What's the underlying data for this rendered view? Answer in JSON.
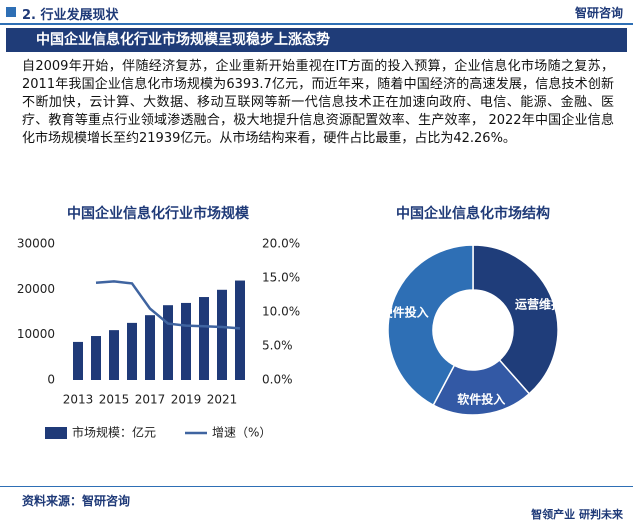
{
  "header": {
    "section": "2. 行业发展现状",
    "logo": "智研咨询"
  },
  "title": "中国企业信息化行业市场规模呈现稳步上涨态势",
  "paragraph": "自2009年开始，伴随经济复苏，企业重新开始重视在IT方面的投入预算，企业信息化市场随之复苏，2011年我国企业信息化市场规模为6393.7亿元，而近年来，随着中国经济的高速发展，信息技术创新不断加快，云计算、大数据、移动互联网等新一代信息技术正在加速向政府、电信、能源、金融、医疗、教育等重点行业领域渗透融合，极大地提升信息资源配置效率、生产效率， 2022年中国企业信息化市场规模增长至约21939亿元。从市场结构来看，硬件占比最重，占比为42.26%。",
  "chart_data": [
    {
      "type": "bar",
      "title": "中国企业信息化行业市场规模",
      "categories": [
        "2013",
        null,
        "2015",
        null,
        "2017",
        null,
        "2019",
        null,
        "2021",
        null
      ],
      "series": [
        {
          "name": "市场规模：亿元",
          "color": "#1f3a78",
          "values": [
            8400,
            9700,
            11000,
            12600,
            14300,
            16500,
            17000,
            18300,
            19900,
            21939
          ]
        },
        {
          "name": "增速（%）",
          "color": "#3f64a0",
          "axis": "y2",
          "values": [
            null,
            14.3,
            14.5,
            14.2,
            10.5,
            8.3,
            8.0,
            7.9,
            7.8,
            7.6
          ]
        }
      ],
      "ylim": [
        0,
        30000
      ],
      "yticks": [
        0,
        10000,
        20000,
        30000
      ],
      "y2lim": [
        0,
        20
      ],
      "y2ticks": [
        {
          "value": 0,
          "label": "0.0%"
        },
        {
          "value": 5,
          "label": "5.0%"
        },
        {
          "value": 10,
          "label": "10.0%"
        },
        {
          "value": 15,
          "label": "15.0%"
        },
        {
          "value": 20,
          "label": "20.0%"
        }
      ],
      "legend": "bottom"
    },
    {
      "type": "pie",
      "title": "中国企业信息化市场结构",
      "categories": [
        "运营维护",
        "软件投入",
        "硬件投入"
      ],
      "values": [
        38.5,
        19.24,
        42.26
      ],
      "colors": [
        "#1f3d7a",
        "#3359a5",
        "#2e6fb5"
      ],
      "donut": true
    }
  ],
  "source": "资料来源：智研咨询",
  "footer": "智领产业  研判未来"
}
